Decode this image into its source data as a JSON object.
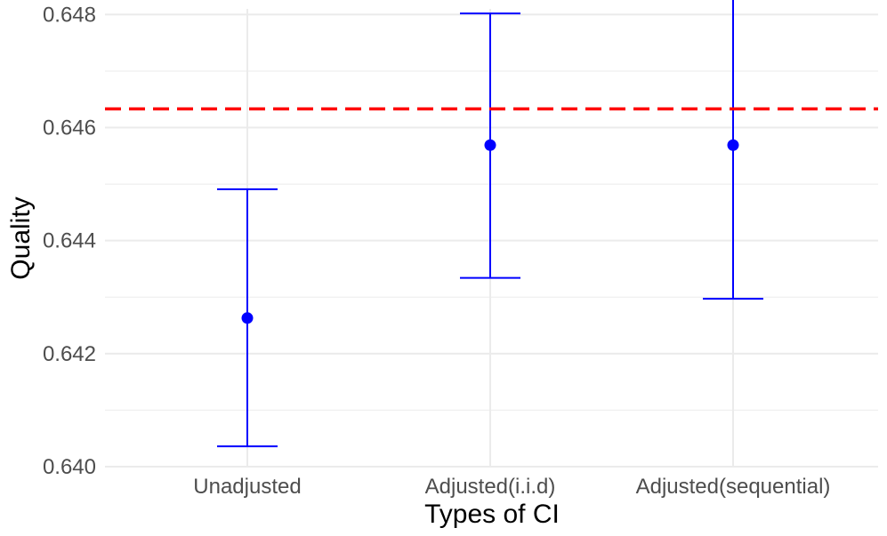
{
  "chart_data": {
    "type": "errorbar",
    "title": "",
    "xlabel": "Types of CI",
    "ylabel": "Quality",
    "categories": [
      "Unadjusted",
      "Adjusted(i.i.d)",
      "Adjusted(sequential)"
    ],
    "points": [
      {
        "category": "Unadjusted",
        "estimate": 0.64263,
        "lower": 0.64036,
        "upper": 0.64491
      },
      {
        "category": "Adjusted(i.i.d)",
        "estimate": 0.64569,
        "lower": 0.64334,
        "upper": 0.64802
      },
      {
        "category": "Adjusted(sequential)",
        "estimate": 0.64569,
        "lower": 0.64297,
        "upper": 0.6484
      }
    ],
    "reference_line": {
      "value": 0.64633,
      "color": "#ff0000",
      "style": "dashed"
    },
    "yticks": [
      "0.640",
      "0.642",
      "0.644",
      "0.646",
      "0.648"
    ],
    "ylim": [
      0.64,
      0.6481
    ],
    "grid": true,
    "colors": {
      "point": "#0000ff",
      "errorbar": "#0000ff",
      "reference": "#ff0000",
      "grid": "#ebebeb"
    }
  }
}
